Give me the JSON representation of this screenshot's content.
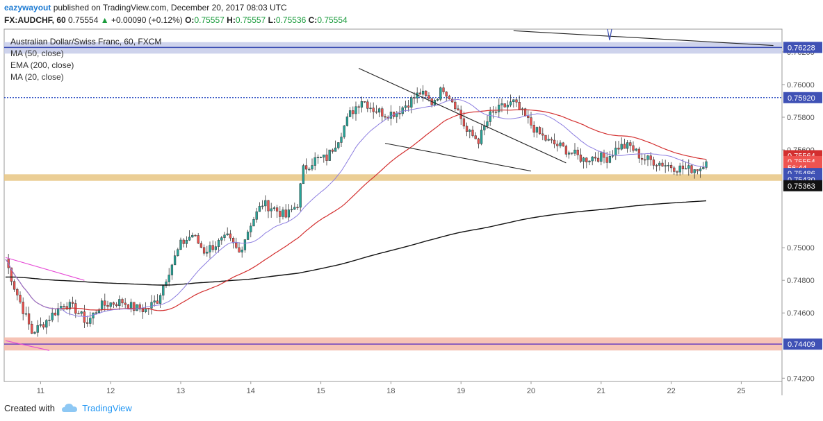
{
  "header": {
    "author": "eazywayout",
    "published_text": "published on TradingView.com, December 20, 2017 08:03 UTC",
    "symbol": "FX:AUDCHF, 60",
    "last": "0.75554",
    "change": "+0.00090 (+0.12%)",
    "o_label": "O:",
    "o": "0.75557",
    "h_label": "H:",
    "h": "0.75557",
    "l_label": "L:",
    "l": "0.75536",
    "c_label": "C:",
    "c": "0.75554"
  },
  "legend": {
    "title": "Australian Dollar/Swiss Franc, 60, FXCM",
    "items": [
      "MA (50, close)",
      "EMA (200, close)",
      "MA (20, close)"
    ]
  },
  "footer": {
    "created_with": "Created with",
    "brand": "TradingView"
  },
  "colors": {
    "up": "#26a69a",
    "down": "#ef5350",
    "ma50": "#d32f2f",
    "ema200": "#111111",
    "ma20": "#8c7de0",
    "resistance": "#3f51b5",
    "support_zone": "#f4b9a8",
    "mid_zone": "#e8c583"
  },
  "chart_data": {
    "type": "candlestick",
    "symbol": "FX:AUDCHF",
    "timeframe": "60",
    "y_range": [
      0.7418,
      0.7634
    ],
    "y_ticks": [
      "0.76200",
      "0.76000",
      "0.75800",
      "0.75600",
      "0.75000",
      "0.74800",
      "0.74600",
      "0.74200"
    ],
    "x_ticks": [
      "11",
      "12",
      "13",
      "14",
      "15",
      "18",
      "19",
      "20",
      "21",
      "22",
      "25"
    ],
    "price_labels": [
      {
        "value": "0.76228",
        "color": "#3f51b5"
      },
      {
        "value": "0.75920",
        "color": "#3f51b5"
      },
      {
        "value": "0.75564",
        "color": "#d32f2f"
      },
      {
        "value": "0.75554",
        "color": "#ef5350"
      },
      {
        "value": "56:44",
        "color": "#ef5350"
      },
      {
        "value": "0.75486",
        "color": "#3f51b5"
      },
      {
        "value": "0.75430",
        "color": "#3f51b5"
      },
      {
        "value": "0.75363",
        "color": "#111111"
      },
      {
        "value": "0.74409",
        "color": "#3f51b5"
      }
    ],
    "horizontal_lines": [
      {
        "price": 0.76228,
        "style": "solid",
        "color": "#3f51b5"
      },
      {
        "price": 0.7592,
        "style": "dotted",
        "color": "#1a3fbf"
      },
      {
        "price": 0.74409,
        "style": "solid",
        "color": "#6a3fbf"
      }
    ],
    "zones": [
      {
        "from": 0.7619,
        "to": 0.7626,
        "color": "#c5cbe9"
      },
      {
        "from": 0.7541,
        "to": 0.7545,
        "color": "#e8c583"
      },
      {
        "from": 0.7437,
        "to": 0.7445,
        "color": "#f4b9a8"
      }
    ],
    "close_path": [
      [
        0,
        0.7493
      ],
      [
        3,
        0.7476
      ],
      [
        6,
        0.7462
      ],
      [
        9,
        0.7448
      ],
      [
        12,
        0.7452
      ],
      [
        16,
        0.7459
      ],
      [
        20,
        0.7466
      ],
      [
        24,
        0.7462
      ],
      [
        28,
        0.7454
      ],
      [
        32,
        0.7464
      ],
      [
        36,
        0.7466
      ],
      [
        40,
        0.7467
      ],
      [
        44,
        0.7463
      ],
      [
        48,
        0.7462
      ],
      [
        52,
        0.7468
      ],
      [
        56,
        0.7486
      ],
      [
        60,
        0.7502
      ],
      [
        64,
        0.7508
      ],
      [
        68,
        0.7498
      ],
      [
        72,
        0.7502
      ],
      [
        76,
        0.7506
      ],
      [
        80,
        0.7497
      ],
      [
        84,
        0.7515
      ],
      [
        88,
        0.7527
      ],
      [
        92,
        0.7524
      ],
      [
        96,
        0.7519
      ],
      [
        100,
        0.7527
      ],
      [
        102,
        0.7548
      ],
      [
        106,
        0.7554
      ],
      [
        110,
        0.7555
      ],
      [
        114,
        0.7567
      ],
      [
        118,
        0.7582
      ],
      [
        122,
        0.7591
      ],
      [
        126,
        0.7585
      ],
      [
        130,
        0.7582
      ],
      [
        134,
        0.7583
      ],
      [
        138,
        0.7589
      ],
      [
        142,
        0.7595
      ],
      [
        146,
        0.7589
      ],
      [
        150,
        0.7598
      ],
      [
        154,
        0.7588
      ],
      [
        158,
        0.7571
      ],
      [
        162,
        0.7566
      ],
      [
        166,
        0.7581
      ],
      [
        170,
        0.7586
      ],
      [
        174,
        0.7589
      ],
      [
        178,
        0.758
      ],
      [
        182,
        0.7571
      ],
      [
        186,
        0.7565
      ],
      [
        190,
        0.7562
      ],
      [
        194,
        0.7558
      ],
      [
        198,
        0.7554
      ],
      [
        202,
        0.7556
      ],
      [
        206,
        0.7555
      ],
      [
        210,
        0.7562
      ],
      [
        214,
        0.7562
      ],
      [
        218,
        0.7555
      ],
      [
        222,
        0.7553
      ],
      [
        226,
        0.7551
      ],
      [
        230,
        0.7549
      ],
      [
        234,
        0.7548
      ],
      [
        238,
        0.7549
      ],
      [
        240,
        0.7555
      ]
    ],
    "total_bars": 240,
    "day_boundaries": [
      12,
      36,
      60,
      84,
      108,
      132,
      156,
      180,
      204,
      228
    ]
  }
}
